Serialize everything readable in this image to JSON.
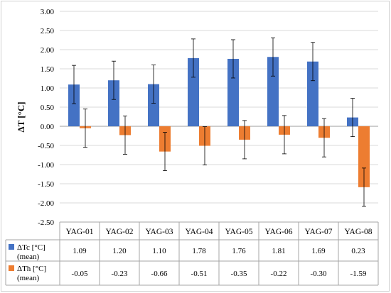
{
  "chart_data": {
    "type": "bar",
    "ylabel": "ΔT [°C]",
    "ylim": [
      -2.5,
      3.0
    ],
    "ytick_step": 0.5,
    "grid": true,
    "categories": [
      "YAG-01",
      "YAG-02",
      "YAG-03",
      "YAG-04",
      "YAG-05",
      "YAG-06",
      "YAG-07",
      "YAG-08"
    ],
    "series": [
      {
        "name": "ΔTc [°C]",
        "name_sub": "(mean)",
        "color": "#4472C4",
        "values": [
          1.09,
          1.2,
          1.1,
          1.78,
          1.76,
          1.81,
          1.69,
          0.23
        ],
        "labels": [
          "1.09",
          "1.20",
          "1.10",
          "1.78",
          "1.76",
          "1.81",
          "1.69",
          "0.23"
        ],
        "error": 0.5
      },
      {
        "name": "ΔTh [°C]",
        "name_sub": "(mean)",
        "color": "#ED7D31",
        "values": [
          -0.05,
          -0.23,
          -0.66,
          -0.51,
          -0.35,
          -0.22,
          -0.3,
          -1.59
        ],
        "labels": [
          "-0.05",
          "-0.23",
          "-0.66",
          "-0.51",
          "-0.35",
          "-0.22",
          "-0.30",
          "-1.59"
        ],
        "error": 0.5
      }
    ]
  }
}
